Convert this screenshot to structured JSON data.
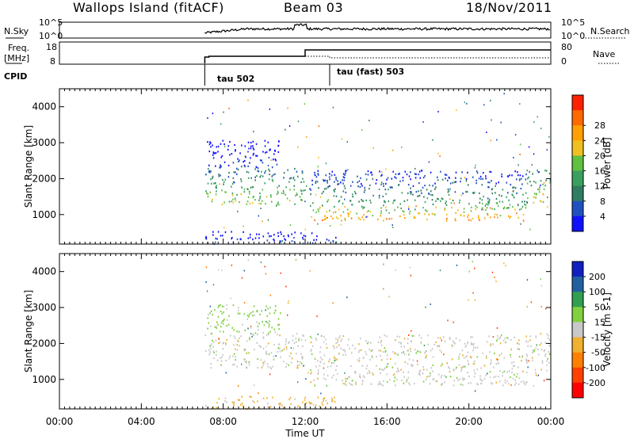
{
  "header": {
    "station": "Wallops Island (fitACF)",
    "beam": "Beam 03",
    "date": "18/Nov/2011"
  },
  "top_panels": {
    "nsky_label": "N.Sky",
    "nsearch_label": "N.Search",
    "freq_label_line1": "Freq.",
    "freq_label_line2": "[MHz]",
    "nave_label": "Nave",
    "cpid_label": "CPID",
    "cpid_segments": [
      {
        "name": "tau 502",
        "start_hour": 7.1,
        "end_hour": 13.2
      },
      {
        "name": "tau (fast) 503",
        "start_hour": 13.2,
        "end_hour": 24.0
      }
    ],
    "noise_ticks": [
      "10^5",
      "10^0"
    ],
    "freq_ticks": [
      "18",
      "8"
    ],
    "nave_ticks": [
      "80",
      "0"
    ]
  },
  "chart_data": [
    {
      "type": "heatmap",
      "name": "power",
      "xlabel": "Time UT",
      "ylabel": "Slant Range [km]",
      "xlim": [
        0,
        24
      ],
      "ylim": [
        180,
        4500
      ],
      "x_ticks": [
        "00:00",
        "04:00",
        "08:00",
        "12:00",
        "16:00",
        "20:00",
        "00:00"
      ],
      "y_ticks": [
        1000,
        2000,
        3000,
        4000
      ],
      "colorbar": {
        "label": "Power [dB]",
        "ticks": [
          4,
          8,
          12,
          16,
          20,
          24,
          28
        ],
        "colors": [
          "#1010ff",
          "#2050c0",
          "#2e7d60",
          "#3aa060",
          "#60c040",
          "#f0c020",
          "#ffa000",
          "#ff6a00",
          "#ff2000"
        ]
      },
      "regions": [
        {
          "t0": 7.1,
          "t1": 12.0,
          "r0": 1300,
          "r1": 2300,
          "value": 20
        },
        {
          "t0": 7.2,
          "t1": 10.8,
          "r0": 2300,
          "r1": 3100,
          "value": 6
        },
        {
          "t0": 12.2,
          "t1": 22.8,
          "r0": 850,
          "r1": 1300,
          "value": 27
        },
        {
          "t0": 12.2,
          "t1": 22.8,
          "r0": 1300,
          "r1": 2250,
          "value": 14
        },
        {
          "t0": 22.8,
          "t1": 24.0,
          "r0": 1200,
          "r1": 2300,
          "value": 22
        },
        {
          "t0": 7.1,
          "t1": 13.5,
          "r0": 200,
          "r1": 550,
          "value": 8
        }
      ]
    },
    {
      "type": "heatmap",
      "name": "velocity",
      "xlabel": "Time UT",
      "ylabel": "Slant Range [km]",
      "xlim": [
        0,
        24
      ],
      "ylim": [
        180,
        4500
      ],
      "x_ticks": [
        "00:00",
        "04:00",
        "08:00",
        "12:00",
        "16:00",
        "20:00",
        "00:00"
      ],
      "y_ticks": [
        1000,
        2000,
        3000,
        4000
      ],
      "colorbar": {
        "label": "Velocity [m s-1]",
        "ticks": [
          200,
          100,
          50,
          15,
          -15,
          -50,
          -100,
          -200
        ],
        "colors": [
          "#1020c0",
          "#2060a0",
          "#30a050",
          "#80d040",
          "#c8c8c8",
          "#f0b030",
          "#ff8000",
          "#ff4000",
          "#ff0000"
        ]
      },
      "regions": [
        {
          "t0": 7.1,
          "t1": 12.0,
          "r0": 1300,
          "r1": 2300,
          "value": 0
        },
        {
          "t0": 7.2,
          "t1": 10.8,
          "r0": 2300,
          "r1": 3100,
          "value": 30
        },
        {
          "t0": 12.2,
          "t1": 22.8,
          "r0": 850,
          "r1": 2250,
          "value": 0
        },
        {
          "t0": 22.8,
          "t1": 24.0,
          "r0": 1200,
          "r1": 2300,
          "value": 0
        },
        {
          "t0": 7.1,
          "t1": 13.5,
          "r0": 200,
          "r1": 550,
          "value": -30
        }
      ]
    }
  ]
}
